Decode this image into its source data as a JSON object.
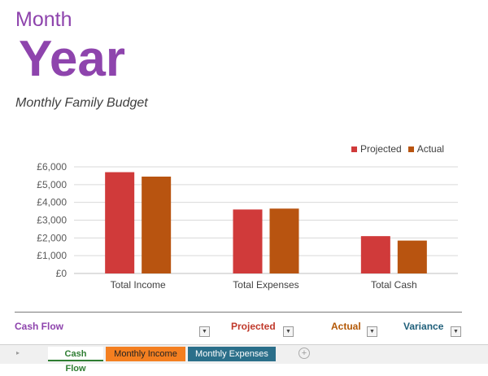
{
  "header": {
    "month": "Month",
    "year": "Year",
    "subtitle": "Monthly Family Budget"
  },
  "colors": {
    "projected": "#d03a3a",
    "actual": "#b85410",
    "accent": "#8e44ad"
  },
  "chart_data": {
    "type": "bar",
    "categories": [
      "Total Income",
      "Total Expenses",
      "Total Cash"
    ],
    "series": [
      {
        "name": "Projected",
        "values": [
          5700,
          3600,
          2100
        ]
      },
      {
        "name": "Actual",
        "values": [
          5450,
          3650,
          1850
        ]
      }
    ],
    "yticks": [
      "£0",
      "£1,000",
      "£2,000",
      "£3,000",
      "£4,000",
      "£5,000",
      "£6,000"
    ],
    "ylim": [
      0,
      6000
    ],
    "legend_position": "top-right",
    "grid": true
  },
  "table": {
    "headers": [
      "Cash Flow",
      "Projected",
      "Actual",
      "Variance"
    ]
  },
  "tabs": {
    "items": [
      "Cash Flow",
      "Monthly Income",
      "Monthly Expenses"
    ],
    "nav_arrow": "▸",
    "add_symbol": "+"
  }
}
